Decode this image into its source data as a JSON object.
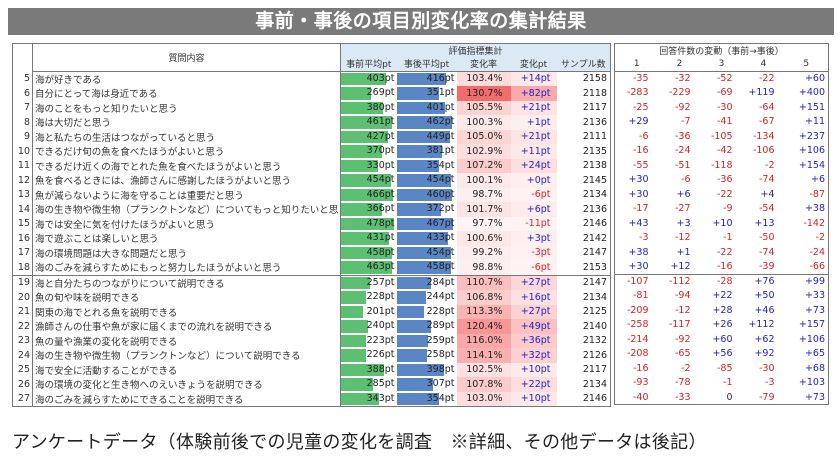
{
  "title": "事前・事後の項目別変化率の集計結果",
  "main_table": {
    "question_header": "質問内容",
    "eval_group_header": "評価指標集計",
    "columns": [
      "事前平均pt",
      "事後平均pt",
      "変化率",
      "変化pt",
      "サンプル数"
    ],
    "bar_max_pt": 500,
    "colors": {
      "pre_bar": "#5cbf72",
      "post_bar": "#5b86c6",
      "rate_heat": "#f26b6b",
      "positive": "#1f1fd0",
      "negative": "#e02020"
    }
  },
  "response_table": {
    "group_header": "回答件数の変動（事前→事後）",
    "columns": [
      "1",
      "2",
      "3",
      "4",
      "5"
    ]
  },
  "rows": [
    {
      "no": "5",
      "question": "海が好きである",
      "pre": 403,
      "post": 416,
      "rate": "103.4%",
      "delta": "+14pt",
      "samples": "2158",
      "resp": [
        "-35",
        "-32",
        "-52",
        "-22",
        "+60"
      ]
    },
    {
      "no": "6",
      "question": "自分にとって海は身近である",
      "pre": 269,
      "post": 351,
      "rate": "130.7%",
      "delta": "+82pt",
      "samples": "2118",
      "resp": [
        "-283",
        "-229",
        "-69",
        "+119",
        "+400"
      ]
    },
    {
      "no": "7",
      "question": "海のことをもっと知りたいと思う",
      "pre": 380,
      "post": 401,
      "rate": "105.5%",
      "delta": "+21pt",
      "samples": "2117",
      "resp": [
        "-25",
        "-92",
        "-30",
        "-64",
        "+151"
      ]
    },
    {
      "no": "8",
      "question": "海は大切だと思う",
      "pre": 461,
      "post": 462,
      "rate": "100.3%",
      "delta": "+1pt",
      "samples": "2136",
      "resp": [
        "+29",
        "-7",
        "-41",
        "-67",
        "+11"
      ]
    },
    {
      "no": "9",
      "question": "海と私たちの生活はつながっていると思う",
      "pre": 427,
      "post": 449,
      "rate": "105.0%",
      "delta": "+21pt",
      "samples": "2111",
      "resp": [
        "-6",
        "-36",
        "-105",
        "-134",
        "+237"
      ]
    },
    {
      "no": "10",
      "question": "できるだけ旬の魚を食べたほうがよいと思う",
      "pre": 370,
      "post": 381,
      "rate": "102.9%",
      "delta": "+11pt",
      "samples": "2135",
      "resp": [
        "-16",
        "-24",
        "-42",
        "-106",
        "+106"
      ]
    },
    {
      "no": "11",
      "question": "できるだけ近くの海でとれた魚を食べたほうがよいと思う",
      "pre": 330,
      "post": 354,
      "rate": "107.2%",
      "delta": "+24pt",
      "samples": "2138",
      "resp": [
        "-55",
        "-51",
        "-118",
        "-2",
        "+154"
      ]
    },
    {
      "no": "12",
      "question": "魚を食べるときには、漁師さんに感謝したほうがよいと思う",
      "pre": 454,
      "post": 454,
      "rate": "100.1%",
      "delta": "+0pt",
      "samples": "2145",
      "resp": [
        "+30",
        "-6",
        "-36",
        "-74",
        "+6"
      ]
    },
    {
      "no": "13",
      "question": "魚が減らないように海を守ることは重要だと思う",
      "pre": 466,
      "post": 460,
      "rate": "98.7%",
      "delta": "-6pt",
      "samples": "2134",
      "resp": [
        "+30",
        "+6",
        "-22",
        "+4",
        "-87"
      ]
    },
    {
      "no": "14",
      "question": "海の生き物や微生物（プランクトンなど）についてもっと知りたいと思う",
      "pre": 366,
      "post": 372,
      "rate": "101.7%",
      "delta": "+6pt",
      "samples": "2136",
      "resp": [
        "-17",
        "-27",
        "-9",
        "-54",
        "+38"
      ]
    },
    {
      "no": "15",
      "question": "海では安全に気を付けたほうがよいと思う",
      "pre": 478,
      "post": 467,
      "rate": "97.7%",
      "delta": "-11pt",
      "samples": "2146",
      "resp": [
        "+43",
        "+3",
        "+10",
        "+13",
        "-142"
      ]
    },
    {
      "no": "16",
      "question": "海で遊ぶことは楽しいと思う",
      "pre": 431,
      "post": 433,
      "rate": "100.6%",
      "delta": "+3pt",
      "samples": "2142",
      "resp": [
        "-3",
        "-12",
        "-1",
        "-50",
        "-2"
      ]
    },
    {
      "no": "17",
      "question": "海の環境問題は大きな問題だと思う",
      "pre": 458,
      "post": 454,
      "rate": "99.2%",
      "delta": "-3pt",
      "samples": "2147",
      "resp": [
        "+38",
        "+1",
        "-22",
        "-74",
        "-24"
      ]
    },
    {
      "no": "18",
      "question": "海のごみを減らすためにもっと努力したほうがよいと思う",
      "pre": 463,
      "post": 458,
      "rate": "98.8%",
      "delta": "-6pt",
      "samples": "2153",
      "resp": [
        "+30",
        "+12",
        "-16",
        "-39",
        "-66"
      ]
    },
    {
      "no": "19",
      "question": "海と自分たちのつながりについて説明できる",
      "pre": 257,
      "post": 284,
      "rate": "110.7%",
      "delta": "+27pt",
      "samples": "2147",
      "resp": [
        "-107",
        "-112",
        "-28",
        "+76",
        "+99"
      ],
      "group_start": true
    },
    {
      "no": "20",
      "question": "魚の旬や味を説明できる",
      "pre": 228,
      "post": 244,
      "rate": "106.8%",
      "delta": "+16pt",
      "samples": "2134",
      "resp": [
        "-81",
        "-94",
        "+22",
        "+50",
        "+33"
      ]
    },
    {
      "no": "21",
      "question": "関東の海でとれる魚を説明できる",
      "pre": 201,
      "post": 228,
      "rate": "113.3%",
      "delta": "+27pt",
      "samples": "2125",
      "resp": [
        "-209",
        "-12",
        "+28",
        "+46",
        "+73"
      ]
    },
    {
      "no": "22",
      "question": "漁師さんの仕事や魚が家に届くまでの流れを説明できる",
      "pre": 240,
      "post": 289,
      "rate": "120.4%",
      "delta": "+49pt",
      "samples": "2140",
      "resp": [
        "-258",
        "-117",
        "+26",
        "+112",
        "+157"
      ]
    },
    {
      "no": "23",
      "question": "魚の量や漁業の変化を説明できる",
      "pre": 223,
      "post": 259,
      "rate": "116.0%",
      "delta": "+36pt",
      "samples": "2132",
      "resp": [
        "-214",
        "-92",
        "+60",
        "+62",
        "+106"
      ]
    },
    {
      "no": "24",
      "question": "海の生き物や微生物（プランクトンなど）について説明できる",
      "pre": 226,
      "post": 258,
      "rate": "114.1%",
      "delta": "+32pt",
      "samples": "2126",
      "resp": [
        "-208",
        "-65",
        "+56",
        "+92",
        "+65"
      ]
    },
    {
      "no": "25",
      "question": "海で安全に活動することができる",
      "pre": 388,
      "post": 398,
      "rate": "102.5%",
      "delta": "+10pt",
      "samples": "2117",
      "resp": [
        "-16",
        "-2",
        "-85",
        "-30",
        "+68"
      ]
    },
    {
      "no": "26",
      "question": "海の環境の変化と生き物へのえいきょうを説明できる",
      "pre": 285,
      "post": 307,
      "rate": "107.8%",
      "delta": "+22pt",
      "samples": "2134",
      "resp": [
        "-93",
        "-78",
        "-1",
        "-3",
        "+103"
      ]
    },
    {
      "no": "27",
      "question": "海のごみを減らすためにできることを説明できる",
      "pre": 343,
      "post": 354,
      "rate": "103.0%",
      "delta": "+10pt",
      "samples": "2146",
      "resp": [
        "-40",
        "-33",
        "0",
        "-79",
        "+73"
      ]
    }
  ],
  "footer_note": "アンケートデータ（体験前後での児童の変化を調査　※詳細、その他データは後記）"
}
